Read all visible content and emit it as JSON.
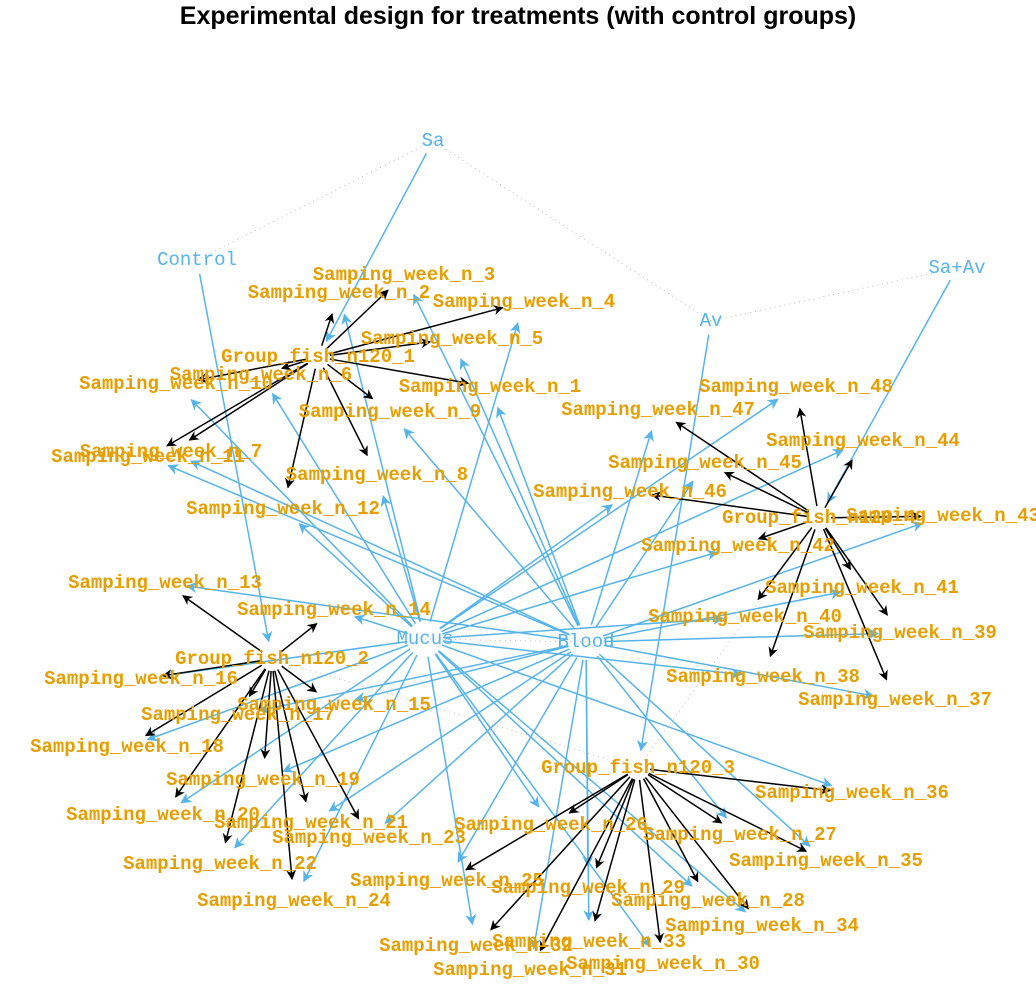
{
  "title": "Experimental design for treatments (with control groups)",
  "colors": {
    "treatment": "#56b4e9",
    "sample": "#e69f00",
    "group_edge": "#000000",
    "treatment_edge": "#56b4e9",
    "dotted": "#bbbbbb"
  },
  "nodes": [
    {
      "id": "Sa",
      "label": "Sa",
      "kind": "treatment"
    },
    {
      "id": "Control",
      "label": "Control",
      "kind": "treatment"
    },
    {
      "id": "SaAv",
      "label": "Sa+Av",
      "kind": "treatment"
    },
    {
      "id": "Av",
      "label": "Av",
      "kind": "treatment"
    },
    {
      "id": "Mucus",
      "label": "Mucus",
      "kind": "treatment"
    },
    {
      "id": "Blood",
      "label": "Blood",
      "kind": "treatment"
    },
    {
      "id": "G1",
      "label": "Group_fish_n120_1",
      "kind": "sample"
    },
    {
      "id": "G2",
      "label": "Group_fish_n120_2",
      "kind": "sample"
    },
    {
      "id": "G3",
      "label": "Group_fish_n120_3",
      "kind": "sample"
    },
    {
      "id": "G4",
      "label": "Group_fish_n120_4",
      "kind": "sample"
    },
    {
      "id": "S1",
      "label": "Samping_week_n_1",
      "kind": "sample"
    },
    {
      "id": "S2",
      "label": "Samping_week_n_2",
      "kind": "sample"
    },
    {
      "id": "S3",
      "label": "Samping_week_n_3",
      "kind": "sample"
    },
    {
      "id": "S4",
      "label": "Samping_week_n_4",
      "kind": "sample"
    },
    {
      "id": "S5",
      "label": "Samping_week_n_5",
      "kind": "sample"
    },
    {
      "id": "S6",
      "label": "Samping_week_n_6",
      "kind": "sample"
    },
    {
      "id": "S7",
      "label": "Samping_week_n_7",
      "kind": "sample"
    },
    {
      "id": "S8",
      "label": "Samping_week_n_8",
      "kind": "sample"
    },
    {
      "id": "S9",
      "label": "Samping_week_n_9",
      "kind": "sample"
    },
    {
      "id": "S10",
      "label": "Samping_week_n_10",
      "kind": "sample"
    },
    {
      "id": "S11",
      "label": "Samping_week_n_11",
      "kind": "sample"
    },
    {
      "id": "S12",
      "label": "Samping_week_n_12",
      "kind": "sample"
    },
    {
      "id": "S13",
      "label": "Samping_week_n_13",
      "kind": "sample"
    },
    {
      "id": "S14",
      "label": "Samping_week_n_14",
      "kind": "sample"
    },
    {
      "id": "S15",
      "label": "Samping_week_n_15",
      "kind": "sample"
    },
    {
      "id": "S16",
      "label": "Samping_week_n_16",
      "kind": "sample"
    },
    {
      "id": "S17",
      "label": "Samping_week_n_17",
      "kind": "sample"
    },
    {
      "id": "S18",
      "label": "Samping_week_n_18",
      "kind": "sample"
    },
    {
      "id": "S19",
      "label": "Samping_week_n_19",
      "kind": "sample"
    },
    {
      "id": "S20",
      "label": "Samping_week_n_20",
      "kind": "sample"
    },
    {
      "id": "S21",
      "label": "Samping_week_n_21",
      "kind": "sample"
    },
    {
      "id": "S22",
      "label": "Samping_week_n_22",
      "kind": "sample"
    },
    {
      "id": "S23",
      "label": "Samping_week_n_23",
      "kind": "sample"
    },
    {
      "id": "S24",
      "label": "Samping_week_n_24",
      "kind": "sample"
    },
    {
      "id": "S25",
      "label": "Samping_week_n_25",
      "kind": "sample"
    },
    {
      "id": "S26",
      "label": "Samping_week_n_26",
      "kind": "sample"
    },
    {
      "id": "S27",
      "label": "Samping_week_n_27",
      "kind": "sample"
    },
    {
      "id": "S28",
      "label": "Samping_week_n_28",
      "kind": "sample"
    },
    {
      "id": "S29",
      "label": "Samping_week_n_29",
      "kind": "sample"
    },
    {
      "id": "S30",
      "label": "Samping_week_n_30",
      "kind": "sample"
    },
    {
      "id": "S31",
      "label": "Samping_week_n_31",
      "kind": "sample"
    },
    {
      "id": "S32",
      "label": "Samping_week_n_32",
      "kind": "sample"
    },
    {
      "id": "S33",
      "label": "Samping_week_n_33",
      "kind": "sample"
    },
    {
      "id": "S34",
      "label": "Samping_week_n_34",
      "kind": "sample"
    },
    {
      "id": "S35",
      "label": "Samping_week_n_35",
      "kind": "sample"
    },
    {
      "id": "S36",
      "label": "Samping_week_n_36",
      "kind": "sample"
    },
    {
      "id": "S37",
      "label": "Samping_week_n_37",
      "kind": "sample"
    },
    {
      "id": "S38",
      "label": "Samping_week_n_38",
      "kind": "sample"
    },
    {
      "id": "S39",
      "label": "Samping_week_n_39",
      "kind": "sample"
    },
    {
      "id": "S40",
      "label": "Samping_week_n_40",
      "kind": "sample"
    },
    {
      "id": "S41",
      "label": "Samping_week_n_41",
      "kind": "sample"
    },
    {
      "id": "S42",
      "label": "Samping_week_n_42",
      "kind": "sample"
    },
    {
      "id": "S43",
      "label": "Samping_week_n_43",
      "kind": "sample"
    },
    {
      "id": "S44",
      "label": "Samping_week_n_44",
      "kind": "sample"
    },
    {
      "id": "S45",
      "label": "Samping_week_n_45",
      "kind": "sample"
    },
    {
      "id": "S46",
      "label": "Samping_week_n_46",
      "kind": "sample"
    },
    {
      "id": "S47",
      "label": "Samping_week_n_47",
      "kind": "sample"
    },
    {
      "id": "S48",
      "label": "Samping_week_n_48",
      "kind": "sample"
    }
  ],
  "edges": {
    "treatment_to_group": [
      [
        "Sa",
        "G1"
      ],
      [
        "Control",
        "G2"
      ],
      [
        "Av",
        "G3"
      ],
      [
        "SaAv",
        "G4"
      ]
    ],
    "group_to_sample": [
      [
        "G1",
        "S1"
      ],
      [
        "G1",
        "S2"
      ],
      [
        "G1",
        "S3"
      ],
      [
        "G1",
        "S4"
      ],
      [
        "G1",
        "S5"
      ],
      [
        "G1",
        "S6"
      ],
      [
        "G1",
        "S7"
      ],
      [
        "G1",
        "S8"
      ],
      [
        "G1",
        "S9"
      ],
      [
        "G1",
        "S10"
      ],
      [
        "G1",
        "S11"
      ],
      [
        "G1",
        "S12"
      ],
      [
        "G2",
        "S13"
      ],
      [
        "G2",
        "S14"
      ],
      [
        "G2",
        "S15"
      ],
      [
        "G2",
        "S16"
      ],
      [
        "G2",
        "S17"
      ],
      [
        "G2",
        "S18"
      ],
      [
        "G2",
        "S19"
      ],
      [
        "G2",
        "S20"
      ],
      [
        "G2",
        "S21"
      ],
      [
        "G2",
        "S22"
      ],
      [
        "G2",
        "S23"
      ],
      [
        "G2",
        "S24"
      ],
      [
        "G3",
        "S25"
      ],
      [
        "G3",
        "S26"
      ],
      [
        "G3",
        "S27"
      ],
      [
        "G3",
        "S28"
      ],
      [
        "G3",
        "S29"
      ],
      [
        "G3",
        "S30"
      ],
      [
        "G3",
        "S31"
      ],
      [
        "G3",
        "S32"
      ],
      [
        "G3",
        "S33"
      ],
      [
        "G3",
        "S34"
      ],
      [
        "G3",
        "S35"
      ],
      [
        "G3",
        "S36"
      ],
      [
        "G4",
        "S37"
      ],
      [
        "G4",
        "S38"
      ],
      [
        "G4",
        "S39"
      ],
      [
        "G4",
        "S40"
      ],
      [
        "G4",
        "S41"
      ],
      [
        "G4",
        "S42"
      ],
      [
        "G4",
        "S43"
      ],
      [
        "G4",
        "S44"
      ],
      [
        "G4",
        "S45"
      ],
      [
        "G4",
        "S46"
      ],
      [
        "G4",
        "S47"
      ],
      [
        "G4",
        "S48"
      ]
    ],
    "tissue_to_sample": [
      [
        "Mucus",
        "S2"
      ],
      [
        "Mucus",
        "S4"
      ],
      [
        "Mucus",
        "S6"
      ],
      [
        "Mucus",
        "S8"
      ],
      [
        "Mucus",
        "S10"
      ],
      [
        "Mucus",
        "S12"
      ],
      [
        "Mucus",
        "S14"
      ],
      [
        "Mucus",
        "S16"
      ],
      [
        "Mucus",
        "S18"
      ],
      [
        "Mucus",
        "S20"
      ],
      [
        "Mucus",
        "S22"
      ],
      [
        "Mucus",
        "S24"
      ],
      [
        "Mucus",
        "S26"
      ],
      [
        "Mucus",
        "S28"
      ],
      [
        "Mucus",
        "S30"
      ],
      [
        "Mucus",
        "S32"
      ],
      [
        "Mucus",
        "S34"
      ],
      [
        "Mucus",
        "S36"
      ],
      [
        "Mucus",
        "S38"
      ],
      [
        "Mucus",
        "S40"
      ],
      [
        "Mucus",
        "S42"
      ],
      [
        "Mucus",
        "S44"
      ],
      [
        "Mucus",
        "S46"
      ],
      [
        "Mucus",
        "S48"
      ],
      [
        "Blood",
        "S1"
      ],
      [
        "Blood",
        "S3"
      ],
      [
        "Blood",
        "S5"
      ],
      [
        "Blood",
        "S7"
      ],
      [
        "Blood",
        "S9"
      ],
      [
        "Blood",
        "S11"
      ],
      [
        "Blood",
        "S13"
      ],
      [
        "Blood",
        "S15"
      ],
      [
        "Blood",
        "S17"
      ],
      [
        "Blood",
        "S19"
      ],
      [
        "Blood",
        "S21"
      ],
      [
        "Blood",
        "S23"
      ],
      [
        "Blood",
        "S25"
      ],
      [
        "Blood",
        "S27"
      ],
      [
        "Blood",
        "S29"
      ],
      [
        "Blood",
        "S31"
      ],
      [
        "Blood",
        "S33"
      ],
      [
        "Blood",
        "S35"
      ],
      [
        "Blood",
        "S37"
      ],
      [
        "Blood",
        "S39"
      ],
      [
        "Blood",
        "S41"
      ],
      [
        "Blood",
        "S43"
      ],
      [
        "Blood",
        "S45"
      ],
      [
        "Blood",
        "S47"
      ]
    ],
    "dotted": [
      [
        "Control",
        "Sa"
      ],
      [
        "Sa",
        "Av"
      ],
      [
        "Av",
        "SaAv"
      ],
      [
        "G2",
        "G3"
      ],
      [
        "G3",
        "G4"
      ],
      [
        "Mucus",
        "Blood"
      ]
    ]
  }
}
